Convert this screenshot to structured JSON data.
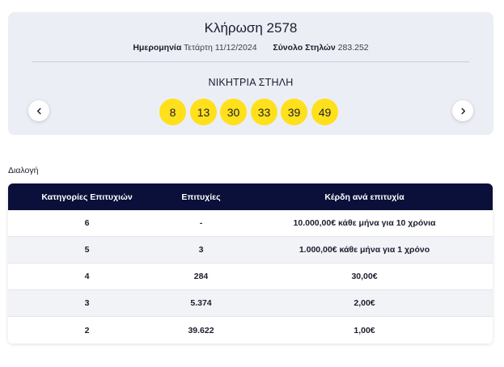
{
  "draw": {
    "title": "Κλήρωση 2578",
    "date_label": "Ημερομηνία",
    "date_value": "Τετάρτη 11/12/2024",
    "columns_label": "Σύνολο Στηλών",
    "columns_value": "283.252",
    "winning_label": "ΝΙΚΗΤΡΙΑ ΣΤΗΛΗ",
    "numbers": [
      "8",
      "13",
      "30",
      "33",
      "39",
      "49"
    ],
    "ball_color": "#ffe01a",
    "prev_icon": "chevron-left-icon",
    "next_icon": "chevron-right-icon"
  },
  "selection_label": "Διαλογή",
  "table": {
    "header_color": "#0a1039",
    "headers": [
      "Κατηγορίες Επιτυχιών",
      "Επιτυχίες",
      "Κέρδη ανά επιτυχία"
    ],
    "rows": [
      [
        "6",
        "-",
        "10.000,00€ κάθε μήνα για 10 χρόνια"
      ],
      [
        "5",
        "3",
        "1.000,00€ κάθε μήνα για 1 χρόνο"
      ],
      [
        "4",
        "284",
        "30,00€"
      ],
      [
        "3",
        "5.374",
        "2,00€"
      ],
      [
        "2",
        "39.622",
        "1,00€"
      ]
    ]
  }
}
